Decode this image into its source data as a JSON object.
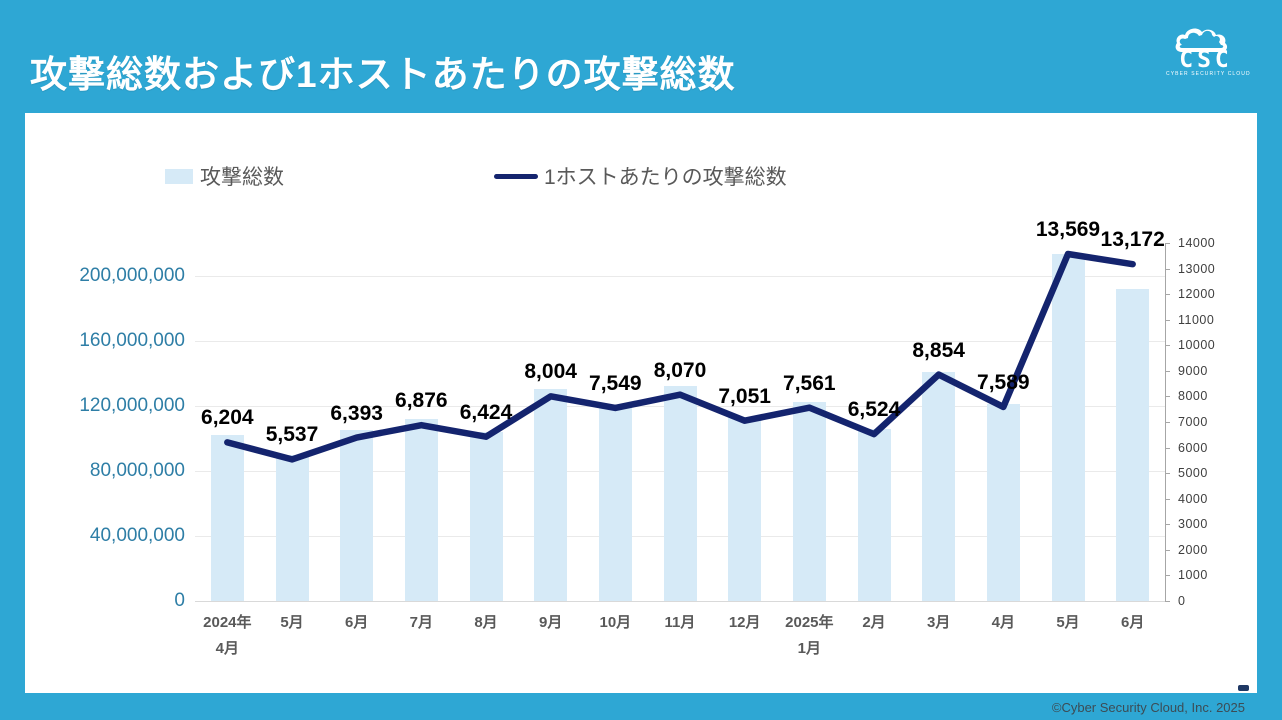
{
  "header": {
    "title": "攻撃総数および1ホストあたりの攻撃総数"
  },
  "logo": {
    "text": "CSC",
    "subtext": "CYBER SECURITY CLOUD"
  },
  "legend": [
    {
      "label": "攻撃総数",
      "type": "bar"
    },
    {
      "label": "1ホストあたりの攻撃総数",
      "type": "line"
    }
  ],
  "footer": {
    "copyright": "©Cyber Security Cloud, Inc. 2025"
  },
  "colors": {
    "brand_blue": "#2ea7d4",
    "bar_fill": "#d6eaf7",
    "line": "#14246e",
    "left_axis_text": "#2e7ea6",
    "right_axis_text": "#3f3f3f",
    "x_axis_text": "#595959",
    "data_label": "#000000"
  },
  "chart_data": {
    "type": "bar",
    "subtype": "combo bar+line, dual axis",
    "title": "攻撃総数および1ホストあたりの攻撃総数",
    "categories": [
      "2024年|4月",
      "5月",
      "6月",
      "7月",
      "8月",
      "9月",
      "10月",
      "11月",
      "12月",
      "2025年|1月",
      "2月",
      "3月",
      "4月",
      "5月",
      "6月"
    ],
    "series": [
      {
        "name": "攻撃総数",
        "type": "bar",
        "axis": "left",
        "estimated": true,
        "values": [
          102000000,
          90000000,
          105000000,
          112000000,
          104000000,
          130000000,
          120000000,
          132000000,
          113000000,
          122000000,
          106000000,
          141000000,
          121000000,
          213000000,
          192000000
        ]
      },
      {
        "name": "1ホストあたりの攻撃総数",
        "type": "line",
        "axis": "right",
        "values": [
          6204,
          5537,
          6393,
          6876,
          6424,
          8004,
          7549,
          8070,
          7051,
          7561,
          6524,
          8854,
          7589,
          13569,
          13172
        ],
        "labels": [
          "6,204",
          "5,537",
          "6,393",
          "6,876",
          "6,424",
          "8,004",
          "7,549",
          "8,070",
          "7,051",
          "7,561",
          "6,524",
          "8,854",
          "7,589",
          "13,569",
          "13,172"
        ]
      }
    ],
    "left_axis": {
      "min": 0,
      "max": 220000000,
      "tick_interval": 40000000,
      "tick_labels": [
        "0",
        "40,000,000",
        "80,000,000",
        "120,000,000",
        "160,000,000",
        "200,000,000"
      ]
    },
    "right_axis": {
      "min": 0,
      "max": 14000,
      "tick_interval": 1000,
      "tick_labels": [
        "0",
        "1000",
        "2000",
        "3000",
        "4000",
        "5000",
        "6000",
        "7000",
        "8000",
        "9000",
        "10000",
        "11000",
        "12000",
        "13000",
        "14000"
      ]
    },
    "grid": "horizontal light gray",
    "legend_position": "top-left inside plot card"
  }
}
